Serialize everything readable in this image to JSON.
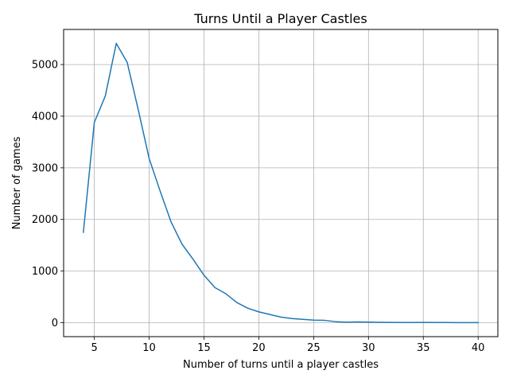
{
  "chart_data": {
    "type": "line",
    "title": "Turns Until a Player Castles",
    "xlabel": "Number of turns until a player castles",
    "ylabel": "Number of games",
    "xlim": [
      2.2,
      41.8
    ],
    "ylim": [
      -270,
      5680
    ],
    "xticks": [
      5,
      10,
      15,
      20,
      25,
      30,
      35,
      40
    ],
    "yticks": [
      0,
      1000,
      2000,
      3000,
      4000,
      5000
    ],
    "grid": true,
    "line_color": "#1f77b4",
    "series": [
      {
        "x": [
          4,
          5,
          6,
          7,
          8,
          9,
          10,
          11,
          12,
          13,
          14,
          15,
          16,
          17,
          18,
          19,
          20,
          21,
          22,
          23,
          24,
          25,
          26,
          27,
          28,
          29,
          30,
          31,
          32,
          33,
          34,
          35,
          36,
          37,
          38,
          39,
          40
        ],
        "values": [
          1750,
          3880,
          4390,
          5410,
          5040,
          4130,
          3180,
          2550,
          1950,
          1520,
          1230,
          920,
          680,
          560,
          390,
          280,
          210,
          160,
          110,
          80,
          65,
          50,
          45,
          20,
          10,
          15,
          12,
          8,
          5,
          3,
          3,
          5,
          4,
          3,
          2,
          2,
          2
        ]
      }
    ]
  }
}
